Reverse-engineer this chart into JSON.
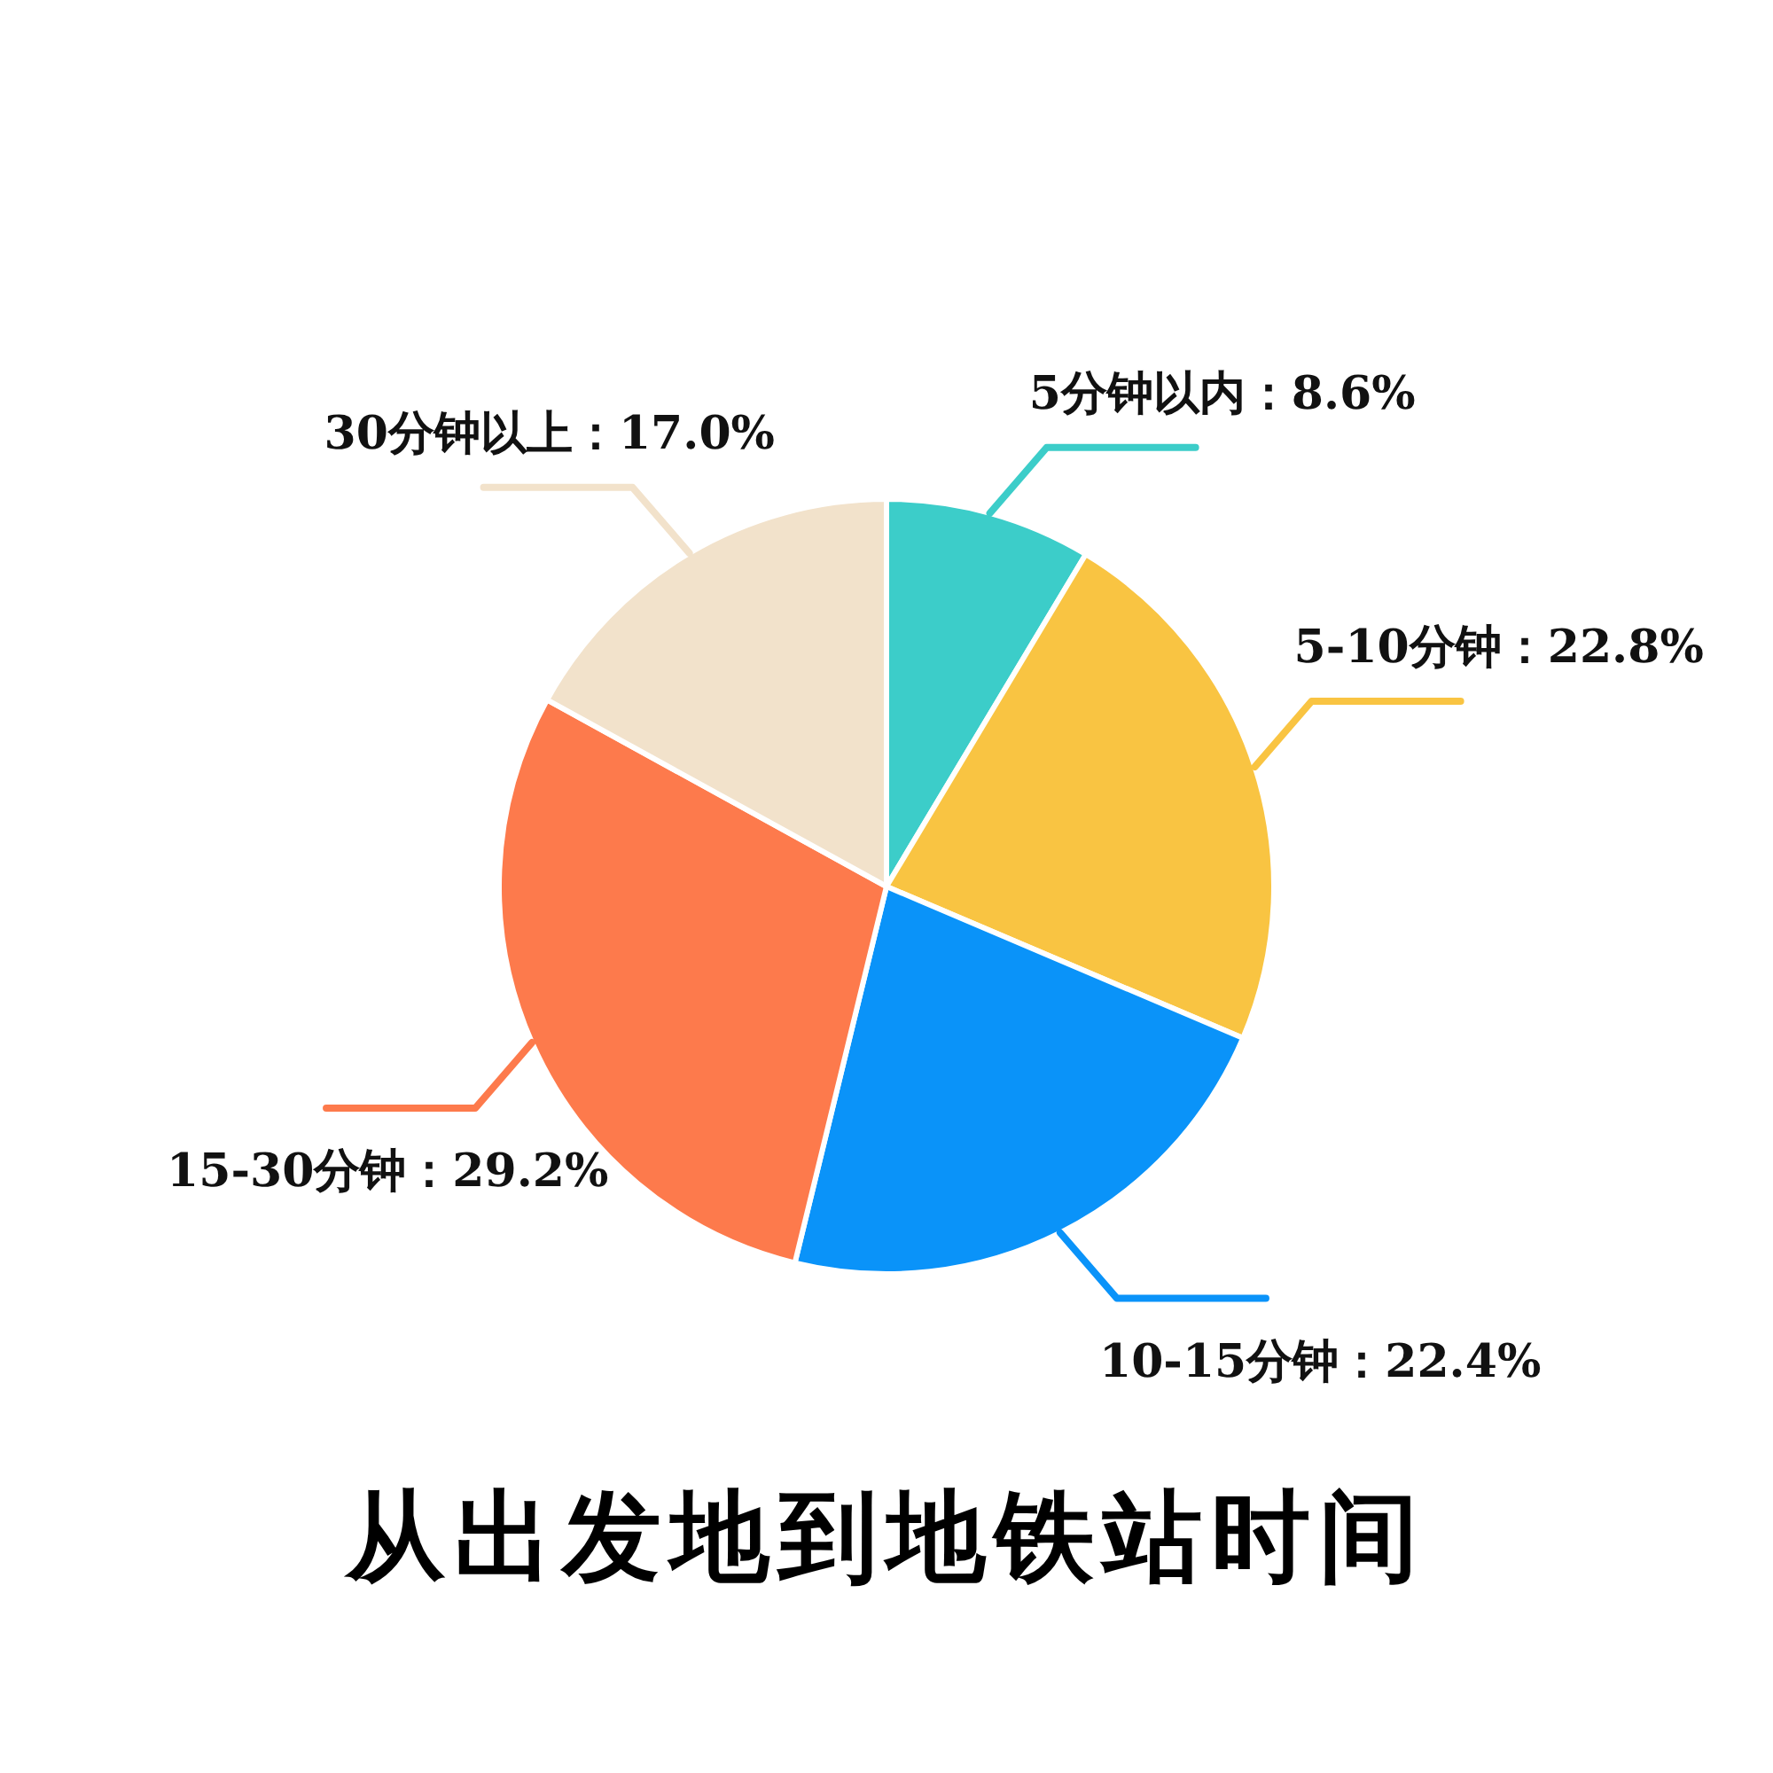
{
  "chart_data": {
    "type": "pie",
    "title": "从出发地到地铁站时间",
    "categories": [
      "5分钟以内",
      "5-10分钟",
      "10-15分钟",
      "15-30分钟",
      "30分钟以上"
    ],
    "values": [
      8.6,
      22.8,
      22.4,
      29.2,
      17.0
    ],
    "value_labels": [
      "8.6%",
      "22.8%",
      "22.4%",
      "29.2%",
      "17.0%"
    ],
    "colors": [
      "#3ccdc9",
      "#f9c442",
      "#0a93f9",
      "#fd7a4c",
      "#f2e2cb"
    ]
  }
}
